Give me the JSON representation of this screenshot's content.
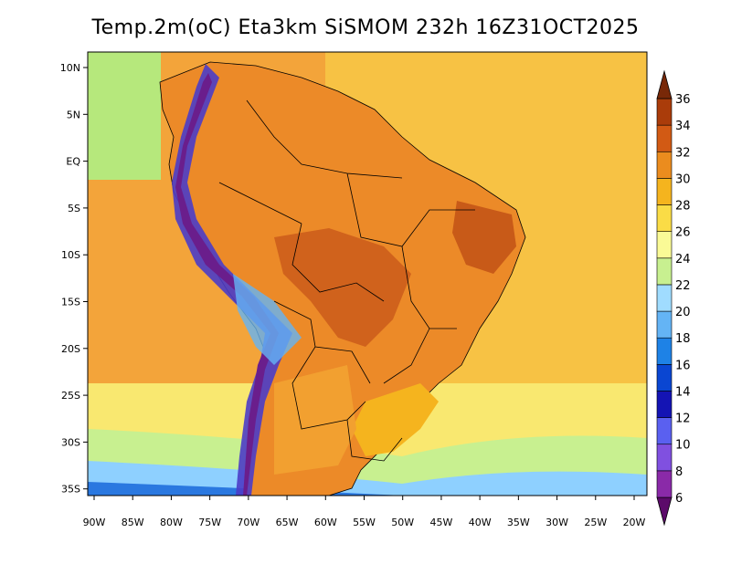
{
  "title": "Temp.2m(oC) Eta3km SiSMOM 232h 16Z31OCT2025",
  "x_axis": {
    "ticks": [
      "90W",
      "85W",
      "80W",
      "75W",
      "70W",
      "65W",
      "60W",
      "55W",
      "50W",
      "45W",
      "40W",
      "35W",
      "30W",
      "25W",
      "20W"
    ]
  },
  "y_axis": {
    "ticks": [
      "10N",
      "5N",
      "EQ",
      "5S",
      "10S",
      "15S",
      "20S",
      "25S",
      "30S",
      "35S"
    ]
  },
  "colorbar": {
    "labels": [
      "6",
      "8",
      "10",
      "12",
      "14",
      "16",
      "18",
      "20",
      "22",
      "24",
      "26",
      "28",
      "30",
      "32",
      "34",
      "36"
    ],
    "colors": [
      "#5c0a6a",
      "#8a2aa8",
      "#8050e0",
      "#5a60f0",
      "#1414b4",
      "#0a46d2",
      "#1e82e6",
      "#64b4f5",
      "#a0dcff",
      "#c8f090",
      "#fafa96",
      "#fadc46",
      "#f5b41e",
      "#eb8c1e",
      "#d25a14",
      "#aa3c0a",
      "#782808"
    ]
  },
  "colors": {
    "ocean": "#f6b24a",
    "land": "#ec8a28",
    "land_hot": "#d86a20",
    "cold_band": "#8ed0ff"
  }
}
